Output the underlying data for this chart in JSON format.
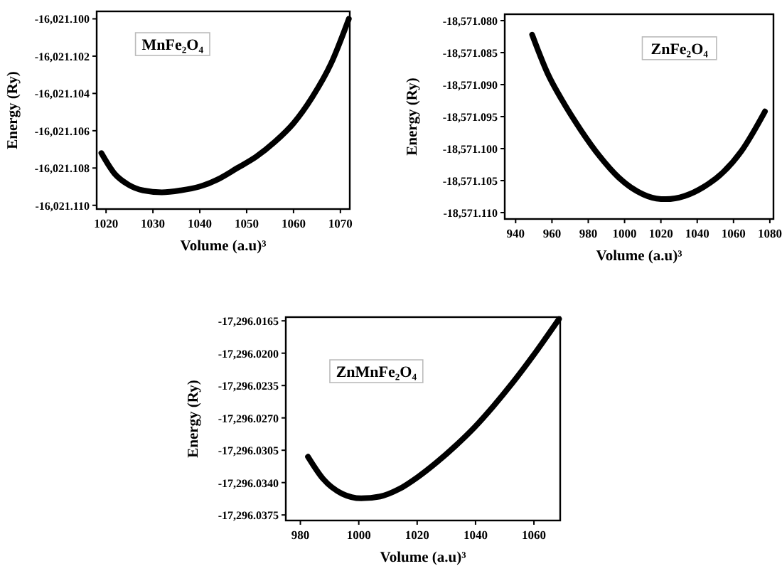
{
  "chart_data": [
    {
      "type": "line",
      "title": "MnFe₂O₄",
      "xlabel": "Volume (a.u)³",
      "ylabel": "Energy (Ry)",
      "xlim": [
        1018,
        1072
      ],
      "ylim": [
        -16021.1102,
        -16021.0996
      ],
      "xticks": [
        1020,
        1030,
        1040,
        1050,
        1060,
        1070
      ],
      "yticks": [
        {
          "value": -16021.11,
          "label": "-16,021.110"
        },
        {
          "value": -16021.108,
          "label": "-16,021.108"
        },
        {
          "value": -16021.106,
          "label": "-16,021.106"
        },
        {
          "value": -16021.104,
          "label": "-16,021.104"
        },
        {
          "value": -16021.102,
          "label": "-16,021.102"
        },
        {
          "value": -16021.1,
          "label": "-16,021.100"
        }
      ],
      "grid": false,
      "marker": "none",
      "line_style": "solid",
      "series": [
        {
          "color": "#000000",
          "x": [
            1019,
            1021.8,
            1024.8,
            1027.9,
            1031.9,
            1035.9,
            1039.9,
            1043.9,
            1048,
            1052,
            1056,
            1060,
            1064,
            1068,
            1071.8
          ],
          "values": [
            -16021.1072,
            -16021.1083,
            -16021.1089,
            -16021.1092,
            -16021.1093,
            -16021.1092,
            -16021.109,
            -16021.1086,
            -16021.108,
            -16021.1074,
            -16021.1066,
            -16021.1056,
            -16021.1042,
            -16021.1024,
            -16021.1
          ]
        }
      ]
    },
    {
      "type": "line",
      "title": "ZnFe₂O₄",
      "xlabel": "Volume (a.u)³",
      "ylabel": "Energy (Ry)",
      "xlim": [
        934,
        1082
      ],
      "ylim": [
        -18571.111,
        -18571.079
      ],
      "xticks": [
        940,
        960,
        980,
        1000,
        1020,
        1040,
        1060,
        1080
      ],
      "yticks": [
        {
          "value": -18571.11,
          "label": "-18,571.110"
        },
        {
          "value": -18571.105,
          "label": "-18,571.105"
        },
        {
          "value": -18571.1,
          "label": "-18,571.100"
        },
        {
          "value": -18571.095,
          "label": "-18,571.095"
        },
        {
          "value": -18571.09,
          "label": "-18,571.090"
        },
        {
          "value": -18571.085,
          "label": "-18,571.085"
        },
        {
          "value": -18571.08,
          "label": "-18,571.080"
        }
      ],
      "grid": false,
      "marker": "none",
      "line_style": "solid",
      "series": [
        {
          "color": "#000000",
          "x": [
            949.1,
            957.7,
            965.5,
            975.9,
            986.3,
            996.7,
            1007.1,
            1017.5,
            1022.7,
            1033.1,
            1043.5,
            1053.9,
            1064.3,
            1077.3
          ],
          "values": [
            -18571.0822,
            -18571.0883,
            -18571.0924,
            -18571.0971,
            -18571.1012,
            -18571.1045,
            -18571.1067,
            -18571.1078,
            -18571.1079,
            -18571.1074,
            -18571.106,
            -18571.1038,
            -18571.1004,
            -18571.0942
          ]
        }
      ]
    },
    {
      "type": "line",
      "title": "ZnMnFe₂O₄",
      "xlabel": "Volume (a.u)³",
      "ylabel": "Energy (Ry)",
      "xlim": [
        975,
        1069
      ],
      "ylim": [
        -17296.0381,
        -17296.0161
      ],
      "xticks": [
        980,
        1000,
        1020,
        1040,
        1060
      ],
      "yticks": [
        {
          "value": -17296.0375,
          "label": "-17,296.0375"
        },
        {
          "value": -17296.034,
          "label": "-17,296.0340"
        },
        {
          "value": -17296.0305,
          "label": "-17,296.0305"
        },
        {
          "value": -17296.027,
          "label": "-17,296.0270"
        },
        {
          "value": -17296.0235,
          "label": "-17,296.0235"
        },
        {
          "value": -17296.02,
          "label": "-17,296.0200"
        },
        {
          "value": -17296.0165,
          "label": "-17,296.0165"
        }
      ],
      "grid": false,
      "marker": "none",
      "line_style": "solid",
      "series": [
        {
          "color": "#000000",
          "x": [
            982.6,
            987.8,
            994.3,
            1000.8,
            1007.3,
            1013.8,
            1020.2,
            1026.7,
            1033.2,
            1039.7,
            1046.2,
            1052.7,
            1059.2,
            1068.6
          ],
          "values": [
            -17296.0312,
            -17296.0336,
            -17296.0352,
            -17296.0357,
            -17296.0355,
            -17296.0347,
            -17296.0334,
            -17296.0318,
            -17296.03,
            -17296.028,
            -17296.0257,
            -17296.0232,
            -17296.0205,
            -17296.0163
          ]
        }
      ]
    }
  ]
}
